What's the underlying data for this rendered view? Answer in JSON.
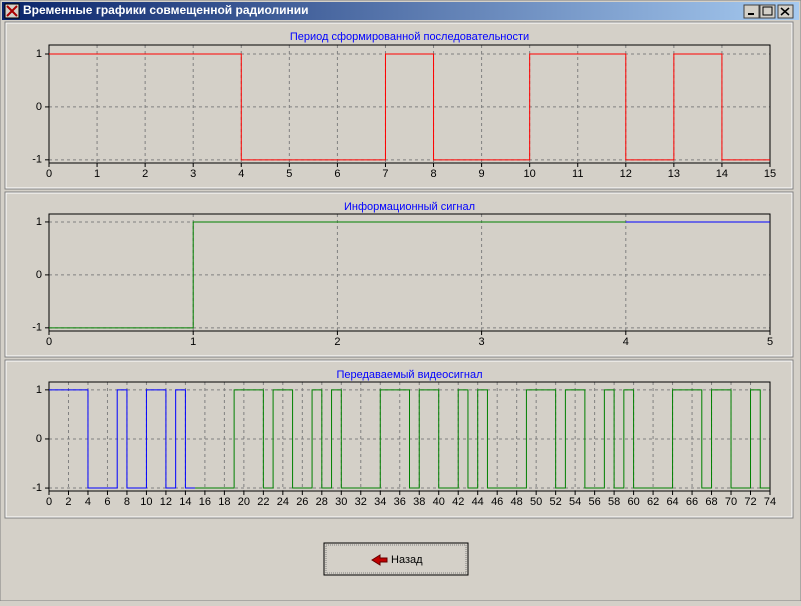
{
  "window": {
    "title": "Временные графики совмещенной радиолинии"
  },
  "chart_data": [
    {
      "type": "line",
      "step": "post",
      "title": "Период сформированной последовательности",
      "series": [
        {
          "color": "#ff0000",
          "x": [
            0,
            1,
            2,
            3,
            4,
            5,
            6,
            7,
            8,
            9,
            10,
            11,
            12,
            13,
            14,
            15
          ],
          "values": [
            1,
            1,
            1,
            1,
            -1,
            -1,
            -1,
            1,
            -1,
            -1,
            1,
            1,
            -1,
            1,
            -1,
            -1
          ]
        }
      ],
      "xlim": [
        0,
        15
      ],
      "xticks": [
        0,
        1,
        2,
        3,
        4,
        5,
        6,
        7,
        8,
        9,
        10,
        11,
        12,
        13,
        14,
        15
      ],
      "ylim": [
        -1.06,
        1.17
      ],
      "yticks": [
        -1,
        0,
        1
      ],
      "grid": true
    },
    {
      "type": "line",
      "step": "post",
      "title": "Информационный сигнал",
      "series": [
        {
          "color": "#008000",
          "x": [
            0,
            1,
            4
          ],
          "values": [
            -1,
            1,
            1
          ]
        },
        {
          "color": "#0000ff",
          "x": [
            4,
            5
          ],
          "values": [
            1,
            1
          ]
        }
      ],
      "xlim": [
        0,
        5
      ],
      "xticks": [
        0,
        1,
        2,
        3,
        4,
        5
      ],
      "ylim": [
        -1.06,
        1.15
      ],
      "yticks": [
        -1,
        0,
        1
      ],
      "grid": true
    },
    {
      "type": "line",
      "step": "post",
      "title": "Передаваемый видеосигнал",
      "series": [
        {
          "color": "#0000ff",
          "x": [
            0,
            1,
            2,
            3,
            4,
            5,
            6,
            7,
            8,
            9,
            10,
            11,
            12,
            13,
            14,
            15
          ],
          "values": [
            1,
            1,
            1,
            1,
            -1,
            -1,
            -1,
            1,
            -1,
            -1,
            1,
            1,
            -1,
            1,
            -1,
            -1
          ]
        },
        {
          "color": "#008000",
          "x": [
            15,
            16,
            17,
            18,
            19,
            20,
            21,
            22,
            23,
            24,
            25,
            26,
            27,
            28,
            29,
            30,
            31,
            32,
            33,
            34,
            35,
            36,
            37,
            38,
            39,
            40,
            41,
            42,
            43,
            44,
            45,
            46,
            47,
            48,
            49,
            50,
            51,
            52,
            53,
            54,
            55,
            56,
            57,
            58,
            59,
            60,
            61,
            62,
            63,
            64,
            65,
            66,
            67,
            68,
            69,
            70,
            71,
            72,
            73,
            74
          ],
          "values": [
            -1,
            -1,
            -1,
            -1,
            1,
            1,
            1,
            -1,
            1,
            1,
            -1,
            -1,
            1,
            -1,
            1,
            -1,
            -1,
            -1,
            -1,
            1,
            1,
            1,
            -1,
            1,
            1,
            -1,
            -1,
            1,
            -1,
            1,
            -1,
            -1,
            -1,
            -1,
            1,
            1,
            1,
            -1,
            1,
            1,
            -1,
            -1,
            1,
            -1,
            1,
            -1,
            -1,
            -1,
            -1,
            1,
            1,
            1,
            -1,
            1,
            1,
            -1,
            -1,
            1,
            -1,
            -1
          ]
        }
      ],
      "xlim": [
        0,
        74
      ],
      "xticks": [
        0,
        2,
        4,
        6,
        8,
        10,
        12,
        14,
        16,
        18,
        20,
        22,
        24,
        26,
        28,
        30,
        32,
        34,
        36,
        38,
        40,
        42,
        44,
        46,
        48,
        50,
        52,
        54,
        56,
        58,
        60,
        62,
        64,
        66,
        68,
        70,
        72,
        74
      ],
      "ylim": [
        -1.06,
        1.16
      ],
      "yticks": [
        -1,
        0,
        1
      ],
      "grid": true
    }
  ],
  "button": {
    "label": "Назад"
  }
}
